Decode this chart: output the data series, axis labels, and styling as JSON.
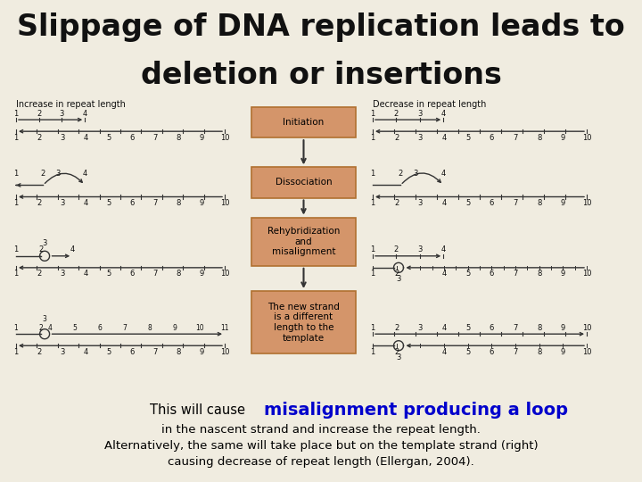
{
  "title_line1": "Slippage of DNA replication leads to",
  "title_line2": "deletion or insertions",
  "title_fontsize": 24,
  "title_bg_color": "#ede8da",
  "bg_color": "#f0ece0",
  "diagram_bg_color": "#f5f2ec",
  "left_label": "Increase in repeat length",
  "right_label": "Decrease in repeat length",
  "box_labels": [
    "Initiation",
    "Dissociation",
    "Rehybridization\nand\nmisalignment",
    "The new strand\nis a different\nlength to the\ntemplate"
  ],
  "box_color": "#d4956a",
  "box_edge_color": "#b07030",
  "bottom_text_prefix": "This will cause ",
  "bottom_text_bold": "misalignment producing a loop",
  "bottom_text_bold_color": "#0000cc",
  "bottom_text_line2": "in the nascent strand and increase the repeat length.",
  "bottom_text_line3": "Alternatively, the same will take place but on the template strand (right)",
  "bottom_text_line4": "causing decrease of repeat length (Ellergan, 2004).",
  "strand_color": "#333333",
  "label_color": "#111111"
}
